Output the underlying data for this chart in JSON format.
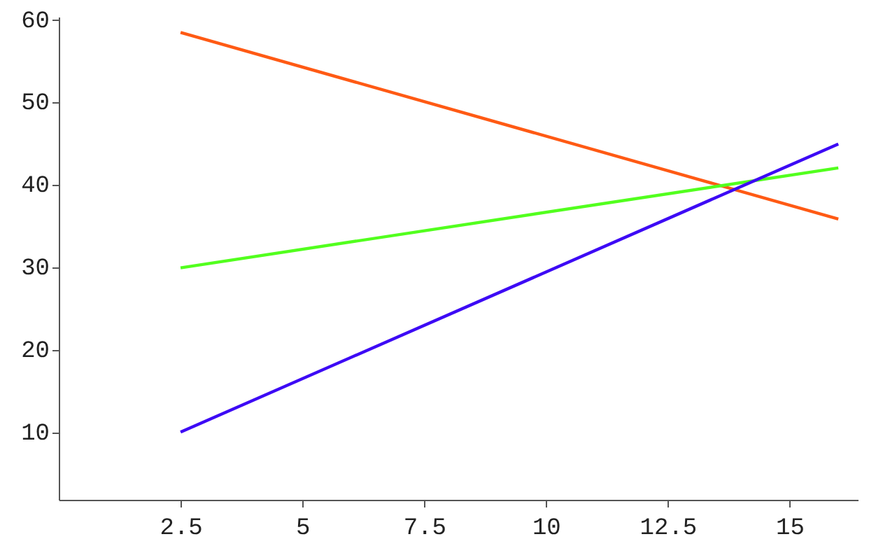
{
  "chart_data": {
    "type": "line",
    "x": [
      2.5,
      16
    ],
    "xlim": [
      0,
      16.4
    ],
    "ylim": [
      1.8,
      60.3
    ],
    "xticks": [
      2.5,
      5,
      7.5,
      10,
      12.5,
      15
    ],
    "yticks": [
      10,
      20,
      30,
      40,
      50,
      60
    ],
    "grid": false,
    "legend": false,
    "marker": "none",
    "line_style": "solid",
    "series": [
      {
        "color": "#ff5a14",
        "values": [
          58.4,
          35.8
        ]
      },
      {
        "color": "#52ff1e",
        "values": [
          29.9,
          42.0
        ]
      },
      {
        "color": "#3d0af5",
        "values": [
          10,
          44.9
        ]
      }
    ]
  }
}
